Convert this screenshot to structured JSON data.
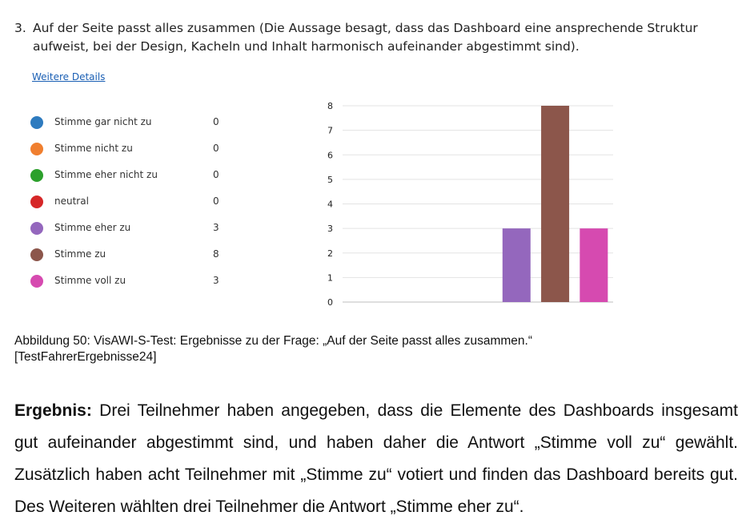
{
  "question": {
    "number": "3.",
    "text": "Auf der Seite passt alles zusammen (Die Aussage besagt, dass das Dashboard eine ansprechende Struktur aufweist, bei der Design, Kacheln und Inhalt harmonisch aufeinander abgestimmt sind)."
  },
  "details_link": "Weitere Details",
  "legend": [
    {
      "label": "Stimme gar nicht zu",
      "count": "0",
      "color": "#2e7bbf"
    },
    {
      "label": "Stimme nicht zu",
      "count": "0",
      "color": "#f07f2f"
    },
    {
      "label": "Stimme eher nicht zu",
      "count": "0",
      "color": "#2ca02c"
    },
    {
      "label": "neutral",
      "count": "0",
      "color": "#d62728"
    },
    {
      "label": "Stimme eher zu",
      "count": "3",
      "color": "#9467bd"
    },
    {
      "label": "Stimme zu",
      "count": "8",
      "color": "#8c564b"
    },
    {
      "label": "Stimme voll zu",
      "count": "3",
      "color": "#d64ab0"
    }
  ],
  "chart_data": {
    "type": "bar",
    "categories": [
      "Stimme gar nicht zu",
      "Stimme nicht zu",
      "Stimme eher nicht zu",
      "neutral",
      "Stimme eher zu",
      "Stimme zu",
      "Stimme voll zu"
    ],
    "values": [
      0,
      0,
      0,
      0,
      3,
      8,
      3
    ],
    "colors": [
      "#2e7bbf",
      "#f07f2f",
      "#2ca02c",
      "#d62728",
      "#9467bd",
      "#8c564b",
      "#d64ab0"
    ],
    "ylim": [
      0,
      8
    ],
    "yticks": [
      0,
      1,
      2,
      3,
      4,
      5,
      6,
      7,
      8
    ],
    "grid": true,
    "title": "",
    "xlabel": "",
    "ylabel": ""
  },
  "caption": {
    "line1": "Abbildung 50: VisAWI-S-Test: Ergebnisse zu der Frage: „Auf der Seite passt alles zusammen.“",
    "line2": "[TestFahrerErgebnisse24]"
  },
  "result": {
    "label": "Ergebnis:",
    "text": " Drei Teilnehmer haben angegeben, dass die Elemente des Dashboards insgesamt gut aufeinander abgestimmt sind, und haben daher die Antwort „Stimme voll zu“ gewählt. Zusätzlich haben acht Teilnehmer mit „Stimme zu“ votiert und finden das Dashboard bereits gut. Des Weiteren wählten drei Teilnehmer die Antwort „Stimme eher zu“."
  }
}
